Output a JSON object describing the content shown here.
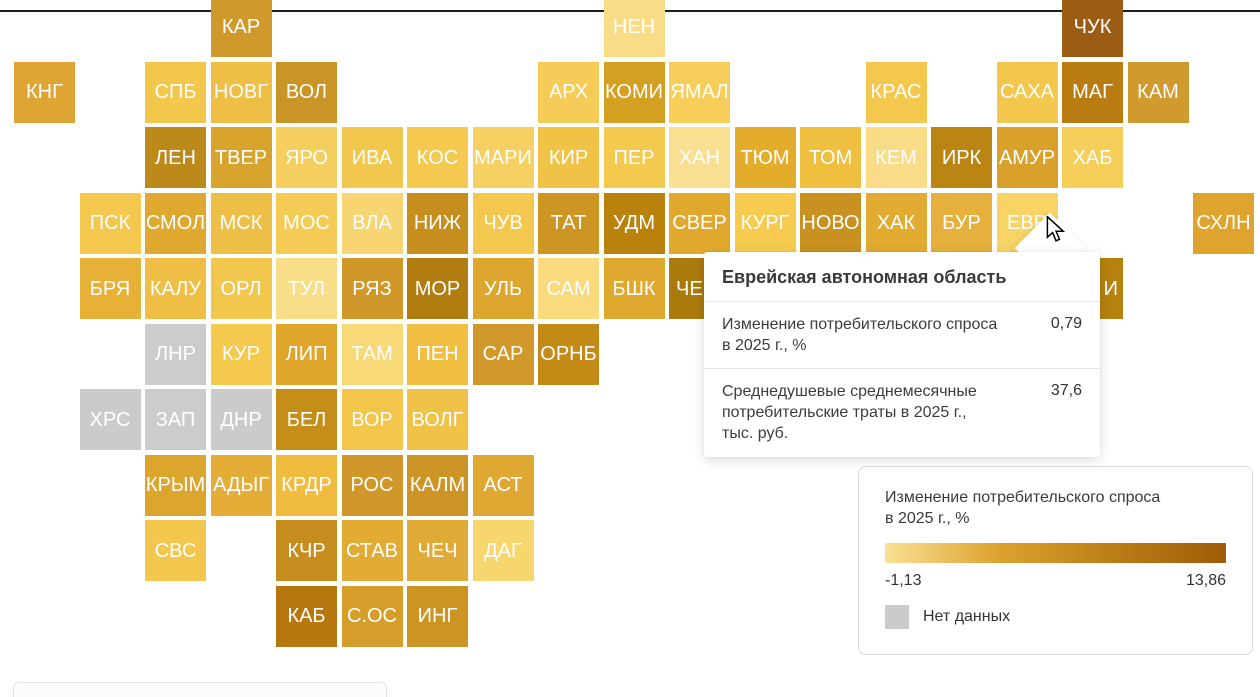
{
  "chart_data": {
    "type": "heatmap",
    "subtype": "tile-cartogram-of-russia",
    "title": "Изменение потребительского спроса в 2025 г., %",
    "legend_position": "bottom-right",
    "color_scale": {
      "min": -1.13,
      "max": 13.86,
      "min_label": "-1,13",
      "max_label": "13,86",
      "low_color": "#F9E195",
      "high_color": "#9F5B07",
      "no_data_color": "#CBCBCB",
      "no_data_label": "Нет данных"
    },
    "no_data_regions": [
      "ЛНР",
      "ХРС",
      "ЗАП",
      "ДНР"
    ],
    "highlighted_region": {
      "code": "ЕВР",
      "name": "Еврейская автономная область",
      "demand_change_2025_pct": 0.79,
      "avg_monthly_consumer_spend_2025_thousand_rub": 37.6
    }
  },
  "map": {
    "tiles": [
      {
        "label": "КАР",
        "row": 0,
        "col": 3,
        "color": "#D0992B"
      },
      {
        "label": "НЕН",
        "row": 0,
        "col": 9,
        "color": "#F8DC86"
      },
      {
        "label": "ЧУК",
        "row": 0,
        "col": 16,
        "color": "#9A5D13"
      },
      {
        "label": "КНГ",
        "row": 1,
        "col": 0,
        "color": "#DFA532"
      },
      {
        "label": "СПБ",
        "row": 1,
        "col": 2,
        "color": "#F3C64C"
      },
      {
        "label": "НОВГ",
        "row": 1,
        "col": 3,
        "color": "#EFBE44"
      },
      {
        "label": "ВОЛ",
        "row": 1,
        "col": 4,
        "color": "#C99526"
      },
      {
        "label": "АРХ",
        "row": 1,
        "col": 8,
        "color": "#F5CC58"
      },
      {
        "label": "КОМИ",
        "row": 1,
        "col": 9,
        "color": "#D3A022"
      },
      {
        "label": "ЯМАЛ",
        "row": 1,
        "col": 10,
        "color": "#F6CE59"
      },
      {
        "label": "КРАС",
        "row": 1,
        "col": 13,
        "color": "#F4C84E"
      },
      {
        "label": "САХА",
        "row": 1,
        "col": 15,
        "color": "#F3C74E"
      },
      {
        "label": "МАГ",
        "row": 1,
        "col": 16,
        "color": "#B97C13"
      },
      {
        "label": "КАМ",
        "row": 1,
        "col": 17,
        "color": "#D19A2E"
      },
      {
        "label": "ЛЕН",
        "row": 2,
        "col": 2,
        "color": "#BC8A1B"
      },
      {
        "label": "ТВЕР",
        "row": 2,
        "col": 3,
        "color": "#D9A42E"
      },
      {
        "label": "ЯРО",
        "row": 2,
        "col": 4,
        "color": "#F5CE60"
      },
      {
        "label": "ИВА",
        "row": 2,
        "col": 5,
        "color": "#F2C74E"
      },
      {
        "label": "КОС",
        "row": 2,
        "col": 6,
        "color": "#F5C850"
      },
      {
        "label": "МАРИ",
        "row": 2,
        "col": 7,
        "color": "#F6D062"
      },
      {
        "label": "КИР",
        "row": 2,
        "col": 8,
        "color": "#F0C245"
      },
      {
        "label": "ПЕР",
        "row": 2,
        "col": 9,
        "color": "#F3C94E"
      },
      {
        "label": "ХАН",
        "row": 2,
        "col": 10,
        "color": "#F8DF92"
      },
      {
        "label": "ТЮМ",
        "row": 2,
        "col": 11,
        "color": "#E4AC2B"
      },
      {
        "label": "ТОМ",
        "row": 2,
        "col": 12,
        "color": "#EFBF40"
      },
      {
        "label": "КЕМ",
        "row": 2,
        "col": 13,
        "color": "#F9DC85"
      },
      {
        "label": "ИРК",
        "row": 2,
        "col": 14,
        "color": "#BB8513"
      },
      {
        "label": "АМУР",
        "row": 2,
        "col": 15,
        "color": "#D9A12C"
      },
      {
        "label": "ХАБ",
        "row": 2,
        "col": 16,
        "color": "#F6CF5A"
      },
      {
        "label": "ПСК",
        "row": 3,
        "col": 1,
        "color": "#F4C74F"
      },
      {
        "label": "СМОЛ",
        "row": 3,
        "col": 2,
        "color": "#DFA92F"
      },
      {
        "label": "МСК",
        "row": 3,
        "col": 3,
        "color": "#EEBF46"
      },
      {
        "label": "МОС",
        "row": 3,
        "col": 4,
        "color": "#F4CB55"
      },
      {
        "label": "ВЛА",
        "row": 3,
        "col": 5,
        "color": "#F7D573"
      },
      {
        "label": "НИЖ",
        "row": 3,
        "col": 6,
        "color": "#C68E1C"
      },
      {
        "label": "ЧУВ",
        "row": 3,
        "col": 7,
        "color": "#F4C84E"
      },
      {
        "label": "ТАТ",
        "row": 3,
        "col": 8,
        "color": "#CD9522"
      },
      {
        "label": "УДМ",
        "row": 3,
        "col": 9,
        "color": "#B8820C"
      },
      {
        "label": "СВЕР",
        "row": 3,
        "col": 10,
        "color": "#E0A92E"
      },
      {
        "label": "КУРГ",
        "row": 3,
        "col": 11,
        "color": "#F6CB4F"
      },
      {
        "label": "НОВО",
        "row": 3,
        "col": 12,
        "color": "#C89120"
      },
      {
        "label": "ХАК",
        "row": 3,
        "col": 13,
        "color": "#E2AB31"
      },
      {
        "label": "БУР",
        "row": 3,
        "col": 14,
        "color": "#E5B13C"
      },
      {
        "label": "ЕВР",
        "row": 3,
        "col": 15,
        "color": "#F8D466"
      },
      {
        "label": "СХЛН",
        "row": 3,
        "col": 18,
        "color": "#DFA42E"
      },
      {
        "label": "БРЯ",
        "row": 4,
        "col": 1,
        "color": "#E7B037"
      },
      {
        "label": "КАЛУ",
        "row": 4,
        "col": 2,
        "color": "#EFBE45"
      },
      {
        "label": "ОРЛ",
        "row": 4,
        "col": 3,
        "color": "#F2C74E"
      },
      {
        "label": "ТУЛ",
        "row": 4,
        "col": 4,
        "color": "#F9DE8A"
      },
      {
        "label": "РЯЗ",
        "row": 4,
        "col": 5,
        "color": "#D09828"
      },
      {
        "label": "МОР",
        "row": 4,
        "col": 6,
        "color": "#B27D10"
      },
      {
        "label": "УЛЬ",
        "row": 4,
        "col": 7,
        "color": "#DCA62F"
      },
      {
        "label": "САМ",
        "row": 4,
        "col": 8,
        "color": "#F9DB7E"
      },
      {
        "label": "БШК",
        "row": 4,
        "col": 9,
        "color": "#DFA930"
      },
      {
        "label": "ЧЕ",
        "row": 4,
        "col": 10,
        "color": "#AB7A0D",
        "partial": "left"
      },
      {
        "label": "И",
        "row": 4,
        "col": 16,
        "color": "#B5820F",
        "partial": "right"
      },
      {
        "label": "ЛНР",
        "row": 5,
        "col": 2,
        "color": "#CCCCCC"
      },
      {
        "label": "КУР",
        "row": 5,
        "col": 3,
        "color": "#F5C84E"
      },
      {
        "label": "ЛИП",
        "row": 5,
        "col": 4,
        "color": "#E0A62B"
      },
      {
        "label": "ТАМ",
        "row": 5,
        "col": 5,
        "color": "#F8D977"
      },
      {
        "label": "ПЕН",
        "row": 5,
        "col": 6,
        "color": "#F0BF41"
      },
      {
        "label": "САР",
        "row": 5,
        "col": 7,
        "color": "#D1992B"
      },
      {
        "label": "ОРНБ",
        "row": 5,
        "col": 8,
        "color": "#C38A16"
      },
      {
        "label": "ХРС",
        "row": 6,
        "col": 1,
        "color": "#CBCBCB"
      },
      {
        "label": "ЗАП",
        "row": 6,
        "col": 2,
        "color": "#CCCCCC"
      },
      {
        "label": "ДНР",
        "row": 6,
        "col": 3,
        "color": "#CBCBCB"
      },
      {
        "label": "БЕЛ",
        "row": 6,
        "col": 4,
        "color": "#C48E18"
      },
      {
        "label": "ВОР",
        "row": 6,
        "col": 5,
        "color": "#F3C54B"
      },
      {
        "label": "ВОЛГ",
        "row": 6,
        "col": 6,
        "color": "#F0C247"
      },
      {
        "label": "КРЫМ",
        "row": 7,
        "col": 2,
        "color": "#DCA52E"
      },
      {
        "label": "АДЫГ",
        "row": 7,
        "col": 3,
        "color": "#E3AD37"
      },
      {
        "label": "КРДР",
        "row": 7,
        "col": 4,
        "color": "#EFBC40"
      },
      {
        "label": "РОС",
        "row": 7,
        "col": 5,
        "color": "#D0982A"
      },
      {
        "label": "КАЛМ",
        "row": 7,
        "col": 6,
        "color": "#CD9526"
      },
      {
        "label": "АСТ",
        "row": 7,
        "col": 7,
        "color": "#DEA833"
      },
      {
        "label": "СВС",
        "row": 8,
        "col": 2,
        "color": "#F3C74E"
      },
      {
        "label": "КЧР",
        "row": 8,
        "col": 4,
        "color": "#C68C1E"
      },
      {
        "label": "СТАВ",
        "row": 8,
        "col": 5,
        "color": "#E2AB33"
      },
      {
        "label": "ЧЕЧ",
        "row": 8,
        "col": 6,
        "color": "#E0AA36"
      },
      {
        "label": "ДАГ",
        "row": 8,
        "col": 7,
        "color": "#F8D66E"
      },
      {
        "label": "КАБ",
        "row": 9,
        "col": 4,
        "color": "#B5770E"
      },
      {
        "label": "С.ОС",
        "row": 9,
        "col": 5,
        "color": "#D59E2B"
      },
      {
        "label": "ИНГ",
        "row": 9,
        "col": 6,
        "color": "#CC9423"
      }
    ]
  },
  "tooltip": {
    "title": "Еврейская автономная область",
    "rows": [
      {
        "label": "Изменение потребительского спроса\nв 2025 г., %",
        "value": "0,79"
      },
      {
        "label": "Среднедушевые среднемесячные\nпотребительские траты в 2025 г.,\nтыс. руб.",
        "value": "37,6"
      }
    ]
  },
  "legend": {
    "title": "Изменение потребительского спроса\nв 2025 г., %",
    "min": "-1,13",
    "max": "13,86",
    "no_data_label": "Нет данных",
    "no_data_color": "#CBCBCB",
    "gradient": [
      "#F9E195",
      "#DDA32E",
      "#BC7D18",
      "#9F5B07"
    ]
  }
}
